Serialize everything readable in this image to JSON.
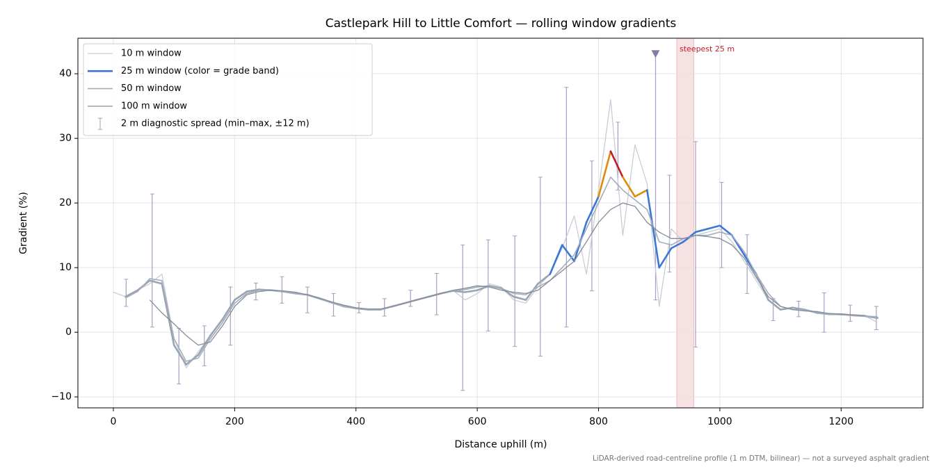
{
  "chart_data": {
    "type": "line",
    "title": "Castlepark Hill to Little Comfort — rolling window gradients",
    "x_label": "Distance uphill (m)",
    "y_label": "Gradient (%)",
    "footnote": "LiDAR-derived road-centreline profile (1 m DTM, bilinear) — not a surveyed asphalt gradient",
    "xlim": [
      -58.5,
      1335
    ],
    "ylim": [
      -11.7,
      45.5
    ],
    "xticks": [
      0,
      200,
      400,
      600,
      800,
      1000,
      1200
    ],
    "yticks": [
      {
        "value": -10,
        "label": "−10"
      },
      0,
      10,
      20,
      30,
      40
    ],
    "grid": true,
    "legend": "upper-left",
    "x": [
      0,
      20,
      40,
      60,
      80,
      100,
      120,
      140,
      160,
      180,
      200,
      220,
      240,
      260,
      280,
      300,
      320,
      340,
      360,
      380,
      400,
      420,
      440,
      460,
      480,
      500,
      520,
      540,
      560,
      580,
      600,
      620,
      640,
      660,
      680,
      700,
      720,
      740,
      760,
      780,
      800,
      820,
      840,
      860,
      880,
      900,
      920,
      940,
      960,
      980,
      1000,
      1020,
      1040,
      1060,
      1080,
      1100,
      1120,
      1140,
      1160,
      1180,
      1200,
      1220,
      1240,
      1260
    ],
    "series": [
      {
        "name": "10 m window",
        "color": "#c5ced6",
        "width": 1.3,
        "values": [
          6.2,
          5.5,
          6.5,
          7.5,
          9,
          -1,
          -5.5,
          -3,
          -0.5,
          2,
          5,
          6.3,
          6.7,
          6.5,
          6.3,
          6,
          5.8,
          5.2,
          4.5,
          4,
          3.7,
          3.5,
          3.5,
          4,
          4.5,
          5,
          5.5,
          6,
          6.5,
          5,
          6,
          7.5,
          7,
          5,
          4.5,
          7,
          9,
          13,
          18,
          9,
          22,
          36,
          15,
          29,
          23,
          4,
          16,
          14,
          15,
          15.5,
          16,
          14,
          11,
          8,
          5,
          3.5,
          3.8,
          3.3,
          3.2,
          2.7,
          2.8,
          2.6,
          2.5,
          1.5
        ]
      },
      {
        "name": "25 m window (color = grade band)",
        "color": "#3a78d8",
        "width": 2.6,
        "grade_bands": [
          {
            "max": 10,
            "color": "#9aa4b2"
          },
          {
            "max": 20,
            "color": "#3a78d8"
          },
          {
            "max": 25,
            "color": "#e08a0a"
          },
          {
            "color": "#c01c28"
          }
        ],
        "values": [
          null,
          5.5,
          6.5,
          8,
          7.5,
          -2,
          -5,
          -3.5,
          -0.5,
          2,
          5,
          6.3,
          6.6,
          6.5,
          6.3,
          6,
          5.8,
          5.2,
          4.6,
          4,
          3.7,
          3.5,
          3.5,
          4,
          4.5,
          5,
          5.5,
          6,
          6.4,
          6.2,
          6.5,
          7.2,
          6.8,
          5.5,
          5,
          7.5,
          9,
          13.5,
          11,
          17,
          21,
          28,
          24,
          21,
          22,
          10,
          13,
          14,
          15.5,
          16,
          16.5,
          15,
          12,
          9,
          5,
          3.5,
          3.8,
          3.5,
          3,
          2.8,
          2.8,
          2.6,
          2.5,
          2.2
        ]
      },
      {
        "name": "50 m window",
        "color": "#a3adbb",
        "width": 1.6,
        "values": [
          null,
          5.3,
          6.3,
          8.3,
          8,
          -1,
          -4.5,
          -4,
          -1,
          1.5,
          4.5,
          6,
          6.5,
          6.5,
          6.3,
          6,
          5.8,
          5.3,
          4.6,
          4,
          3.7,
          3.5,
          3.5,
          4,
          4.5,
          5,
          5.5,
          6,
          6.4,
          6.6,
          7,
          7.2,
          6.8,
          6,
          5.8,
          7,
          8,
          10,
          12,
          16,
          20,
          24,
          22,
          20.5,
          19,
          14,
          13.5,
          14.5,
          15,
          15,
          15.5,
          15,
          12.5,
          9,
          6,
          4,
          3.5,
          3.5,
          3,
          2.8,
          2.7,
          2.6,
          2.5,
          2.4
        ]
      },
      {
        "name": "100 m window",
        "color": "#848c9a",
        "width": 1.3,
        "values": [
          null,
          null,
          null,
          5,
          3,
          1.3,
          -0.5,
          -2,
          -1.5,
          1,
          4,
          5.8,
          6.3,
          6.5,
          6.4,
          6.2,
          5.8,
          5.3,
          4.7,
          4.2,
          3.8,
          3.6,
          3.6,
          4,
          4.5,
          5,
          5.5,
          6,
          6.5,
          6.8,
          7.2,
          7,
          6.5,
          6.2,
          6,
          6.5,
          8,
          9.5,
          11,
          14,
          17,
          19,
          20,
          19.5,
          17,
          15.5,
          14.5,
          14.5,
          15,
          14.8,
          14.5,
          13.5,
          11.5,
          8.5,
          5.5,
          4,
          3.5,
          3.3,
          3.2,
          2.9,
          2.8,
          2.7,
          2.6,
          null
        ]
      }
    ],
    "errorbars": {
      "name": "2 m diagnostic spread (min–max, ±12 m)",
      "color": "#a89cc0",
      "x": [
        21,
        64,
        108,
        150,
        193,
        235,
        278,
        320,
        363,
        405,
        447,
        490,
        533,
        576,
        618,
        662,
        704,
        747,
        789,
        832,
        894,
        917,
        960,
        1003,
        1045,
        1088,
        1130,
        1172,
        1215,
        1258
      ],
      "low": [
        4,
        0.8,
        -8,
        -5.2,
        -2,
        5,
        4.5,
        3,
        2.5,
        3,
        2.5,
        4,
        2.7,
        -9,
        0.2,
        -2.2,
        -3.7,
        0.8,
        6.4,
        22,
        5,
        9.3,
        -2.3,
        10,
        6,
        1.8,
        2.4,
        0,
        1.7,
        0.4
      ],
      "high": [
        8.2,
        21.4,
        0.6,
        1,
        7,
        7.6,
        8.6,
        7,
        6,
        4.6,
        5.2,
        6.5,
        9.1,
        13.5,
        14.3,
        14.9,
        24,
        37.9,
        26.5,
        32.5,
        43,
        24.3,
        29.5,
        23.2,
        15.1,
        5.2,
        4.8,
        6.1,
        4.2,
        4
      ]
    },
    "marker": {
      "x": 894,
      "y": 43,
      "color": "#8a7aa8"
    },
    "span": {
      "x": [
        929,
        957
      ],
      "label": "steepest 25 m",
      "color": "#c01c28"
    }
  }
}
